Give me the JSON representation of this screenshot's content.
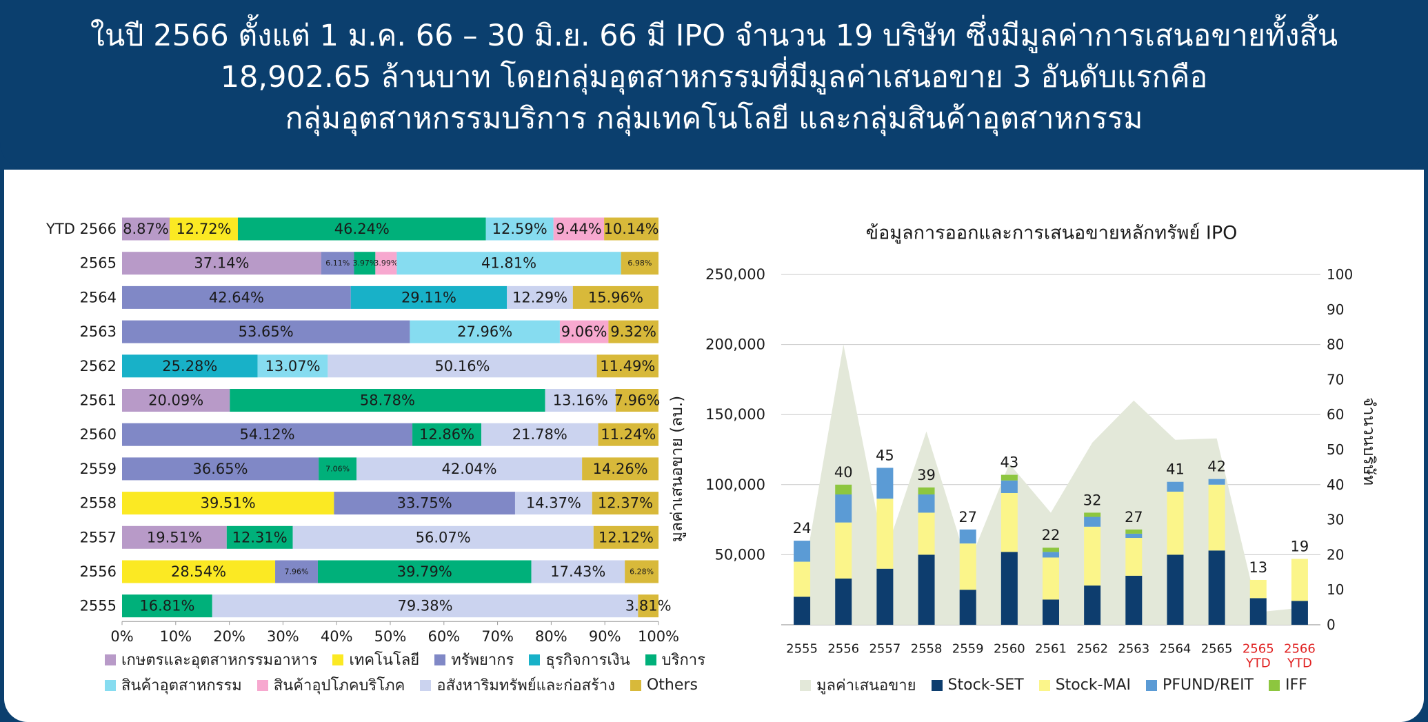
{
  "header": {
    "line1": "ในปี 2566 ตั้งแต่ 1 ม.ค. 66 – 30 มิ.ย. 66  มี IPO จำนวน 19 บริษัท ซึ่งมีมูลค่าการเสนอขายทั้งสิ้น",
    "line2": "18,902.65 ล้านบาท โดยกลุ่มอุตสาหกรรมที่มีมูลค่าเสนอขาย 3 อันดับแรกคือ",
    "line3": "กลุ่มอุตสาหกรรมบริการ กลุ่มเทคโนโลยี และกลุ่มสินค้าอุตสาหกรรม"
  },
  "chart_data": [
    {
      "type": "bar",
      "orientation": "horizontal-stacked-100",
      "categories": [
        "YTD 2566",
        "2565",
        "2564",
        "2563",
        "2562",
        "2561",
        "2560",
        "2559",
        "2558",
        "2557",
        "2556",
        "2555"
      ],
      "xticks": [
        "0%",
        "10%",
        "20%",
        "30%",
        "40%",
        "50%",
        "60%",
        "70%",
        "80%",
        "90%",
        "100%"
      ],
      "xlim": [
        0,
        100
      ],
      "legend_position": "bottom",
      "groups": [
        {
          "name": "เกษตรและอุตสาหกรรมอาหาร",
          "color": "#b89ac8"
        },
        {
          "name": "เทคโนโลยี",
          "color": "#fbe923"
        },
        {
          "name": "ทรัพยากร",
          "color": "#8088c6"
        },
        {
          "name": "ธุรกิจการเงิน",
          "color": "#18b1c8"
        },
        {
          "name": "บริการ",
          "color": "#00b07a"
        },
        {
          "name": "สินค้าอุตสาหกรรม",
          "color": "#86dcf0"
        },
        {
          "name": "สินค้าอุปโภคบริโภค",
          "color": "#f7a8cf"
        },
        {
          "name": "อสังหาริมทรัพย์และก่อสร้าง",
          "color": "#cbd3ef"
        },
        {
          "name": "Others",
          "color": "#d8b93a"
        }
      ],
      "rows": [
        {
          "segments": [
            {
              "g": 0,
              "v": 8.87,
              "label": "8.87%"
            },
            {
              "g": 1,
              "v": 12.72,
              "label": "12.72%"
            },
            {
              "g": 4,
              "v": 46.24,
              "label": "46.24%"
            },
            {
              "g": 5,
              "v": 12.59,
              "label": "12.59%"
            },
            {
              "g": 6,
              "v": 9.44,
              "label": "9.44%"
            },
            {
              "g": 8,
              "v": 10.14,
              "label": "10.14%"
            }
          ]
        },
        {
          "segments": [
            {
              "g": 0,
              "v": 37.14,
              "label": "37.14%"
            },
            {
              "g": 2,
              "v": 6.11,
              "label": "6.11%",
              "small": true
            },
            {
              "g": 4,
              "v": 3.97,
              "label": "3.97%",
              "small": true
            },
            {
              "g": 6,
              "v": 3.99,
              "label": "3.99%",
              "small": true
            },
            {
              "g": 5,
              "v": 41.81,
              "label": "41.81%"
            },
            {
              "g": 8,
              "v": 6.98,
              "label": "6.98%",
              "small": true
            }
          ]
        },
        {
          "segments": [
            {
              "g": 2,
              "v": 42.64,
              "label": "42.64%"
            },
            {
              "g": 3,
              "v": 29.11,
              "label": "29.11%"
            },
            {
              "g": 7,
              "v": 12.29,
              "label": "12.29%"
            },
            {
              "g": 8,
              "v": 15.96,
              "label": "15.96%"
            }
          ]
        },
        {
          "segments": [
            {
              "g": 2,
              "v": 53.65,
              "label": "53.65%"
            },
            {
              "g": 5,
              "v": 27.96,
              "label": "27.96%"
            },
            {
              "g": 6,
              "v": 9.06,
              "label": "9.06%"
            },
            {
              "g": 8,
              "v": 9.32,
              "label": "9.32%"
            }
          ]
        },
        {
          "segments": [
            {
              "g": 3,
              "v": 25.28,
              "label": "25.28%"
            },
            {
              "g": 5,
              "v": 13.07,
              "label": "13.07%"
            },
            {
              "g": 7,
              "v": 50.16,
              "label": "50.16%"
            },
            {
              "g": 8,
              "v": 11.49,
              "label": "11.49%"
            }
          ]
        },
        {
          "segments": [
            {
              "g": 0,
              "v": 20.09,
              "label": "20.09%"
            },
            {
              "g": 4,
              "v": 58.78,
              "label": "58.78%"
            },
            {
              "g": 7,
              "v": 13.16,
              "label": "13.16%"
            },
            {
              "g": 8,
              "v": 7.96,
              "label": "7.96%"
            }
          ]
        },
        {
          "segments": [
            {
              "g": 2,
              "v": 54.12,
              "label": "54.12%"
            },
            {
              "g": 4,
              "v": 12.86,
              "label": "12.86%"
            },
            {
              "g": 7,
              "v": 21.78,
              "label": "21.78%"
            },
            {
              "g": 8,
              "v": 11.24,
              "label": "11.24%"
            }
          ]
        },
        {
          "segments": [
            {
              "g": 2,
              "v": 36.65,
              "label": "36.65%"
            },
            {
              "g": 4,
              "v": 7.06,
              "label": "7.06%",
              "small": true
            },
            {
              "g": 7,
              "v": 42.04,
              "label": "42.04%"
            },
            {
              "g": 8,
              "v": 14.26,
              "label": "14.26%"
            }
          ]
        },
        {
          "segments": [
            {
              "g": 1,
              "v": 39.51,
              "label": "39.51%"
            },
            {
              "g": 2,
              "v": 33.75,
              "label": "33.75%"
            },
            {
              "g": 7,
              "v": 14.37,
              "label": "14.37%"
            },
            {
              "g": 8,
              "v": 12.37,
              "label": "12.37%"
            }
          ]
        },
        {
          "segments": [
            {
              "g": 0,
              "v": 19.51,
              "label": "19.51%"
            },
            {
              "g": 4,
              "v": 12.31,
              "label": "12.31%"
            },
            {
              "g": 7,
              "v": 56.07,
              "label": "56.07%"
            },
            {
              "g": 8,
              "v": 12.12,
              "label": "12.12%"
            }
          ]
        },
        {
          "segments": [
            {
              "g": 1,
              "v": 28.54,
              "label": "28.54%"
            },
            {
              "g": 2,
              "v": 7.96,
              "label": "7.96%",
              "small": true
            },
            {
              "g": 4,
              "v": 39.79,
              "label": "39.79%"
            },
            {
              "g": 7,
              "v": 17.43,
              "label": "17.43%"
            },
            {
              "g": 8,
              "v": 6.28,
              "label": "6.28%",
              "small": true
            }
          ]
        },
        {
          "segments": [
            {
              "g": 4,
              "v": 16.81,
              "label": "16.81%"
            },
            {
              "g": 7,
              "v": 79.38,
              "label": "79.38%"
            },
            {
              "g": 8,
              "v": 3.81,
              "label": "3.81%"
            }
          ]
        }
      ],
      "ylabel_right_side": "มูลค่าเสนอขาย (ลบ.)"
    },
    {
      "type": "bar",
      "subtype": "stacked-bar-with-area",
      "title": "ข้อมูลการออกและการเสนอขายหลักทรัพย์ IPO",
      "ylabel_right": "จำนวนบริษัท",
      "ylim_left": [
        0,
        250000
      ],
      "yticks_left": [
        "250,000",
        "200,000",
        "150,000",
        "100,000",
        "50,000"
      ],
      "ylim_right": [
        0,
        100
      ],
      "yticks_right": [
        "100",
        "90",
        "80",
        "70",
        "60",
        "50",
        "40",
        "30",
        "20",
        "10",
        "0"
      ],
      "grid": true,
      "legend_position": "bottom",
      "categories": [
        {
          "label": "2555",
          "red": false
        },
        {
          "label": "2556",
          "red": false
        },
        {
          "label": "2557",
          "red": false
        },
        {
          "label": "2558",
          "red": false
        },
        {
          "label": "2559",
          "red": false
        },
        {
          "label": "2560",
          "red": false
        },
        {
          "label": "2561",
          "red": false
        },
        {
          "label": "2562",
          "red": false
        },
        {
          "label": "2563",
          "red": false
        },
        {
          "label": "2564",
          "red": false
        },
        {
          "label": "2565",
          "red": false
        },
        {
          "label": "2565",
          "label2": "YTD",
          "red": true
        },
        {
          "label": "2566",
          "label2": "YTD",
          "red": true
        }
      ],
      "count_labels": [
        "24",
        "40",
        "45",
        "39",
        "27",
        "43",
        "22",
        "32",
        "27",
        "41",
        "42",
        "13",
        "19"
      ],
      "area_series": {
        "name": "มูลค่าเสนอขาย",
        "color": "#e3e8d9",
        "values": [
          28000,
          200000,
          50000,
          138000,
          42000,
          115000,
          80000,
          130000,
          160000,
          132000,
          133000,
          9000,
          12000
        ]
      },
      "series": [
        {
          "name": "Stock-SET",
          "color": "#0d3d6e",
          "values": [
            20000,
            33000,
            40000,
            50000,
            25000,
            52000,
            18000,
            28000,
            35000,
            50000,
            53000,
            19000,
            17000
          ]
        },
        {
          "name": "Stock-MAI",
          "color": "#fbf58a",
          "values": [
            25000,
            40000,
            50000,
            30000,
            33000,
            42000,
            30000,
            42000,
            27000,
            45000,
            47000,
            13000,
            30000
          ]
        },
        {
          "name": "PFUND/REIT",
          "color": "#5b9bd5",
          "values": [
            15000,
            20000,
            22000,
            13000,
            10000,
            9000,
            4000,
            7000,
            3000,
            7000,
            4000,
            0,
            0
          ]
        },
        {
          "name": "IFF",
          "color": "#8dc63f",
          "values": [
            0,
            7000,
            0,
            5000,
            0,
            4000,
            3000,
            3000,
            3000,
            0,
            0,
            0,
            0
          ]
        }
      ]
    }
  ]
}
